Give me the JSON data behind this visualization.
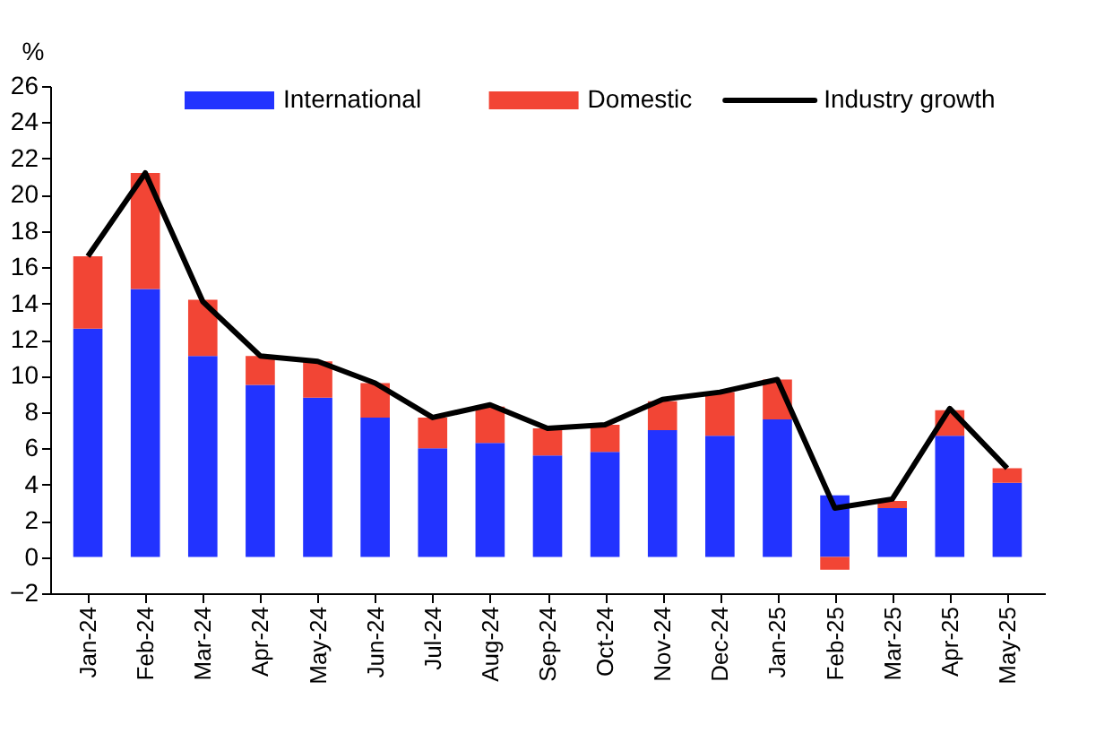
{
  "chart_data": {
    "type": "bar",
    "stacked": true,
    "ylabel": "%",
    "categories": [
      "Jan-24",
      "Feb-24",
      "Mar-24",
      "Apr-24",
      "May-24",
      "Jun-24",
      "Jul-24",
      "Aug-24",
      "Sep-24",
      "Oct-24",
      "Nov-24",
      "Dec-24",
      "Jan-25",
      "Feb-25",
      "Mar-25",
      "Apr-25",
      "May-25"
    ],
    "series": [
      {
        "name": "International",
        "color": "#2233ff",
        "values": [
          12.6,
          14.8,
          11.1,
          9.5,
          8.8,
          7.7,
          6.0,
          6.3,
          5.6,
          5.8,
          7.0,
          6.7,
          7.6,
          3.4,
          2.7,
          6.7,
          4.1
        ]
      },
      {
        "name": "Domestic",
        "color": "#f24535",
        "values": [
          4.0,
          6.4,
          3.1,
          1.6,
          2.0,
          1.9,
          1.7,
          2.0,
          1.5,
          1.5,
          1.6,
          2.4,
          2.2,
          -0.7,
          0.4,
          1.4,
          0.8
        ]
      },
      {
        "name": "Industry growth",
        "type": "line",
        "color": "#000000",
        "values": [
          16.6,
          21.2,
          14.1,
          11.1,
          10.8,
          9.6,
          7.7,
          8.4,
          7.1,
          7.3,
          8.7,
          9.1,
          9.8,
          2.7,
          3.2,
          8.2,
          4.9
        ]
      }
    ],
    "ylim": [
      -2,
      26
    ],
    "yticks": [
      -2,
      0,
      2,
      4,
      6,
      8,
      10,
      12,
      14,
      16,
      18,
      20,
      22,
      24,
      26
    ],
    "grid": false,
    "legend": "top",
    "marker": "none",
    "line_style": "solid"
  }
}
